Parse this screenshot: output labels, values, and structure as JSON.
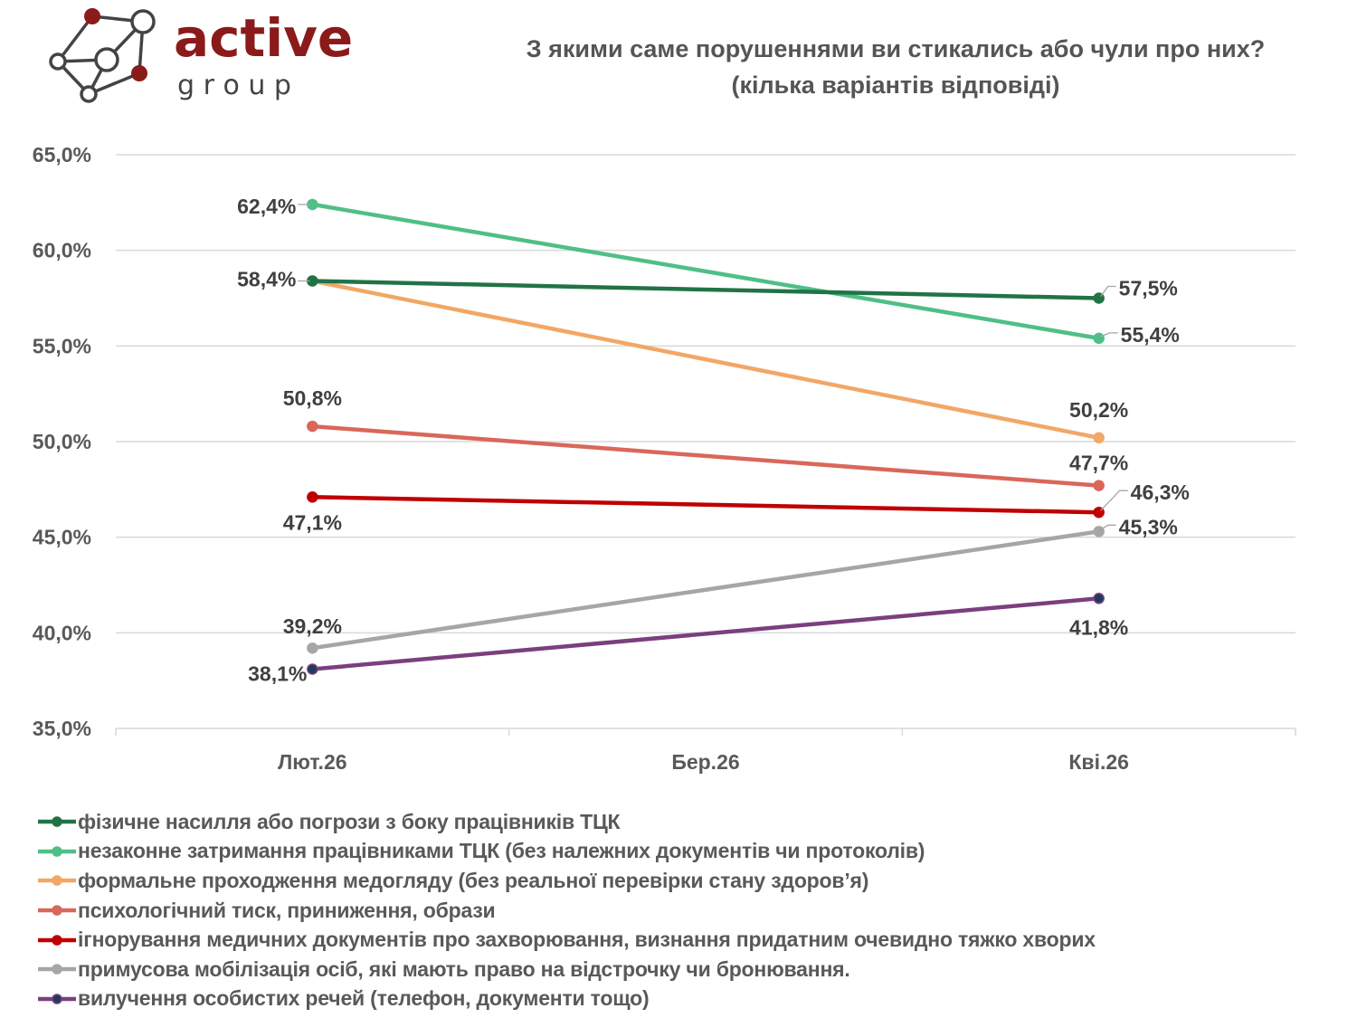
{
  "logo": {
    "word1": "active",
    "word2": "g r o u p",
    "brand_color": "#8B1A1A",
    "node_color": "#444444"
  },
  "title": {
    "line1": "З якими саме порушеннями ви стикались або чули про них?",
    "line2": "(кілька варіантів відповіді)"
  },
  "chart_data": {
    "type": "line",
    "title": "З якими саме порушеннями ви стикались або чули про них? (кілька варіантів відповіді)",
    "xlabel": "",
    "ylabel": "",
    "categories": [
      "Лют.26",
      "Бер.26",
      "Кві.26"
    ],
    "ylim": [
      35,
      65
    ],
    "yticks": [
      35,
      40,
      45,
      50,
      55,
      60,
      65
    ],
    "ytick_labels": [
      "35,0%",
      "40,0%",
      "45,0%",
      "50,0%",
      "55,0%",
      "60,0%",
      "65,0%"
    ],
    "grid": true,
    "legend_position": "bottom",
    "series": [
      {
        "name": "фізичне насилля або погрози з боку працівників ТЦК",
        "color": "#217346",
        "marker_color": "#217346",
        "values": [
          58.4,
          null,
          57.5
        ],
        "labels": [
          "",
          "",
          "57,5%"
        ]
      },
      {
        "name": "незаконне затримання працівниками ТЦК (без належних документів чи протоколів)",
        "color": "#4FBF87",
        "marker_color": "#4FBF87",
        "values": [
          62.4,
          null,
          55.4
        ],
        "labels": [
          "62,4%",
          "",
          "55,4%"
        ]
      },
      {
        "name": "формальне проходження медогляду (без реальної перевірки стану здоров’я)",
        "color": "#F2A766",
        "marker_color": "#F2A766",
        "values": [
          58.4,
          null,
          50.2
        ],
        "labels": [
          "58,4%",
          "",
          "50,2%"
        ]
      },
      {
        "name": "психологічний тиск, приниження, образи",
        "color": "#D9675A",
        "marker_color": "#D9675A",
        "values": [
          50.8,
          null,
          47.7
        ],
        "labels": [
          "50,8%",
          "",
          "47,7%"
        ]
      },
      {
        "name": "ігнорування медичних документів про захворювання, визнання придатним очевидно тяжко хворих",
        "color": "#C00000",
        "marker_color": "#C00000",
        "values": [
          47.1,
          null,
          46.3
        ],
        "labels": [
          "47,1%",
          "",
          "46,3%"
        ]
      },
      {
        "name": "примусова мобілізація осіб, які мають право на відстрочку чи бронювання.",
        "color": "#A6A6A6",
        "marker_color": "#A6A6A6",
        "values": [
          39.2,
          null,
          45.3
        ],
        "labels": [
          "39,2%",
          "",
          "45,3%"
        ]
      },
      {
        "name": "вилучення особистих речей (телефон, документи тощо)",
        "color": "#7B3F7E",
        "marker_color": "#1F3A5F",
        "values": [
          38.1,
          null,
          41.8
        ],
        "labels": [
          "38,1%",
          "",
          "41,8%"
        ]
      }
    ]
  }
}
